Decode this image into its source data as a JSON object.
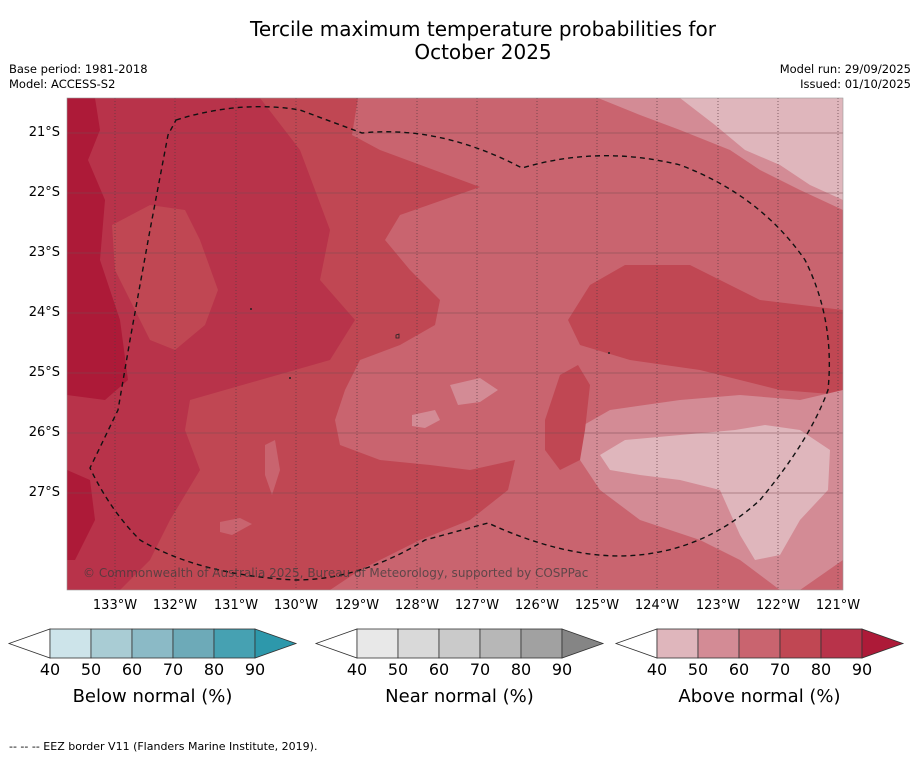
{
  "title": {
    "line1": "Tercile maximum temperature probabilities for",
    "line2": "October 2025"
  },
  "meta_left": {
    "base_period": "Base period: 1981-2018",
    "model": "Model: ACCESS-S2"
  },
  "meta_right": {
    "model_run": "Model run: 29/09/2025",
    "issued": "Issued: 01/10/2025"
  },
  "map": {
    "latitude_labels": [
      "21°S",
      "22°S",
      "23°S",
      "24°S",
      "25°S",
      "26°S",
      "27°S"
    ],
    "longitude_labels": [
      "133°W",
      "132°W",
      "131°W",
      "130°W",
      "129°W",
      "128°W",
      "127°W",
      "126°W",
      "125°W",
      "124°W",
      "123°W",
      "122°W",
      "121°W"
    ],
    "copyright": "© Commonwealth of Australia 2025, Bureau of Meteorology, supported by COSPPac",
    "colors": {
      "above_40_50": "#dfb6bc",
      "above_50_60": "#d38b95",
      "above_60_70": "#c9646f",
      "above_70_80": "#c04753",
      "above_80_90": "#b8334a",
      "above_90": "#ad1a38"
    }
  },
  "colorbars": [
    {
      "label": "Below normal (%)",
      "ticks": [
        "40",
        "50",
        "60",
        "70",
        "80",
        "90"
      ],
      "colors": [
        "#ffffff",
        "#cde4ea",
        "#a9ccd4",
        "#8bbac6",
        "#6daab8",
        "#46a1b2",
        "#2d98ab"
      ]
    },
    {
      "label": "Near normal (%)",
      "ticks": [
        "40",
        "50",
        "60",
        "70",
        "80",
        "90"
      ],
      "colors": [
        "#ffffff",
        "#e8e8e8",
        "#d9d9d9",
        "#cacaca",
        "#b7b7b7",
        "#a1a1a1",
        "#858585"
      ]
    },
    {
      "label": "Above normal (%)",
      "ticks": [
        "40",
        "50",
        "60",
        "70",
        "80",
        "90"
      ],
      "colors": [
        "#ffffff",
        "#dfb6bc",
        "#d38b95",
        "#c9646f",
        "#c04753",
        "#b8334a",
        "#ad1a38"
      ]
    }
  ],
  "footnote": "--  --  -- EEZ border V11 (Flanders Marine Institute, 2019)."
}
